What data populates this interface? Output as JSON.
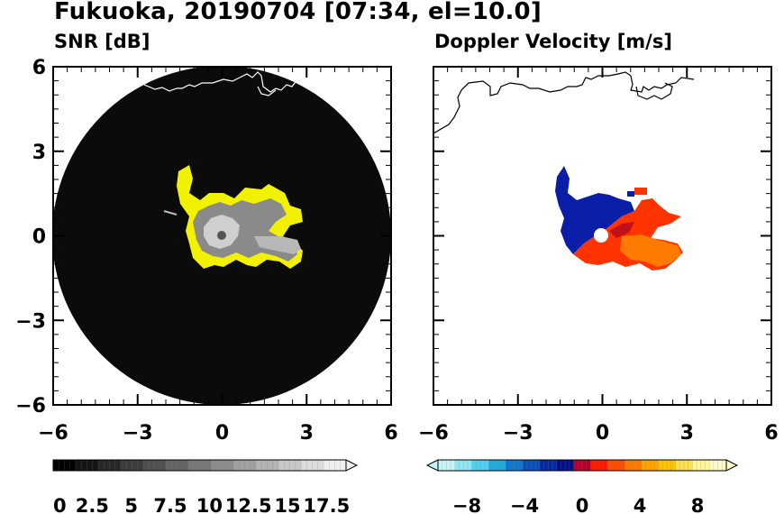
{
  "header": {
    "title": "Fukuoka, 20190704 [07:34, el=10.0]"
  },
  "chart_data": [
    {
      "type": "heatmap",
      "title": "SNR [dB]",
      "xlim": [
        -6,
        6
      ],
      "ylim": [
        -6,
        6
      ],
      "x_ticks": [
        "−6",
        "−3",
        "0",
        "3",
        "6"
      ],
      "y_ticks": [
        "6",
        "3",
        "0",
        "−3",
        "−6"
      ],
      "grid": false,
      "background": "#0b0b0b",
      "echo_color": "#f2f200",
      "colorbar": {
        "min": 0,
        "max": 18.75,
        "extend": "max",
        "labels": [
          "0",
          "2.5",
          "5",
          "7.5",
          "10",
          "12.5",
          "15",
          "17.5"
        ],
        "colors": [
          "#000000",
          "#141414",
          "#282828",
          "#3c3c3c",
          "#505050",
          "#646464",
          "#787878",
          "#8c8c8c",
          "#a0a0a0",
          "#b4b4b4",
          "#c8c8c8",
          "#dcdcdc",
          "#f0f0f0"
        ]
      }
    },
    {
      "type": "heatmap",
      "title": "Doppler Velocity [m/s]",
      "xlim": [
        -6,
        6
      ],
      "ylim": [
        -6,
        6
      ],
      "x_ticks": [
        "−6",
        "−3",
        "0",
        "3",
        "6"
      ],
      "y_ticks": [],
      "grid": false,
      "colorbar": {
        "min": -10,
        "max": 10,
        "extend": "both",
        "labels": [
          "−8",
          "−4",
          "0",
          "4",
          "8"
        ],
        "colors": [
          "#c6f4f8",
          "#8ee6f2",
          "#4fd0ee",
          "#22aadf",
          "#1177cc",
          "#0a4fb6",
          "#06299f",
          "#030f88",
          "#b5002a",
          "#ff1a00",
          "#ff4d00",
          "#ff7a00",
          "#ffa300",
          "#ffc400",
          "#ffe04f",
          "#fff59a",
          "#fffacd"
        ]
      }
    }
  ]
}
